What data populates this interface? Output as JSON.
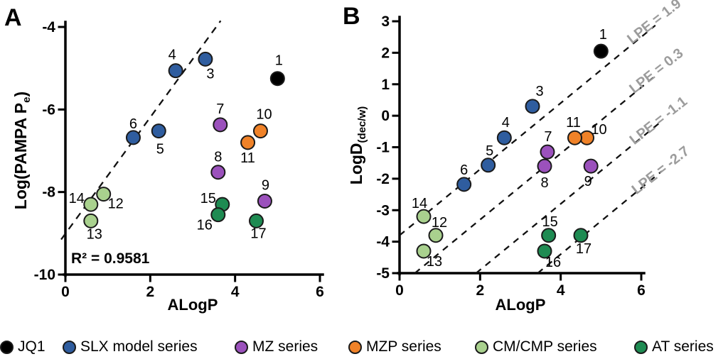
{
  "chart_data": [
    {
      "panel_letter": "A",
      "type": "scatter",
      "xlabel": "ALogP",
      "ylabel_main": "Log(PAMPA P",
      "ylabel_sub": "e",
      "ylabel_suffix": ")",
      "xlim": [
        0,
        6
      ],
      "ylim": [
        -10,
        -4
      ],
      "xticks": [
        0,
        2,
        4,
        6
      ],
      "yticks": [
        -4,
        -6,
        -8,
        -10
      ],
      "annotation": "R² = 0.9581",
      "trendline": {
        "x1": -0.1,
        "y1": -9.15,
        "x2": 3.66,
        "y2": -3.85
      },
      "series": [
        {
          "name": "JQ1",
          "color": "#000000",
          "points": [
            {
              "label": "1",
              "x": 5.0,
              "y": -5.25,
              "dx": 2,
              "dy": -26
            }
          ]
        },
        {
          "name": "SLX model series",
          "color": "#2F5D9F",
          "points": [
            {
              "label": "3",
              "x": 3.3,
              "y": -4.78,
              "dx": 7,
              "dy": 20
            },
            {
              "label": "4",
              "x": 2.6,
              "y": -5.06,
              "dx": -5,
              "dy": -23
            },
            {
              "label": "5",
              "x": 2.2,
              "y": -6.52,
              "dx": 2,
              "dy": 25
            },
            {
              "label": "6",
              "x": 1.6,
              "y": -6.68,
              "dx": 0,
              "dy": -20
            }
          ]
        },
        {
          "name": "MZ series",
          "color": "#9B51BC",
          "points": [
            {
              "label": "7",
              "x": 3.65,
              "y": -6.37,
              "dx": 0,
              "dy": -23
            },
            {
              "label": "8",
              "x": 3.6,
              "y": -7.52,
              "dx": 0,
              "dy": -22
            },
            {
              "label": "9",
              "x": 4.7,
              "y": -8.22,
              "dx": 1,
              "dy": -23
            }
          ]
        },
        {
          "name": "MZP series",
          "color": "#F08228",
          "points": [
            {
              "label": "10",
              "x": 4.6,
              "y": -6.52,
              "dx": 5,
              "dy": -24
            },
            {
              "label": "11",
              "x": 4.3,
              "y": -6.8,
              "dx": 0,
              "dy": 21
            }
          ]
        },
        {
          "name": "CM/CMP series",
          "color": "#A9D18E",
          "points": [
            {
              "label": "12",
              "x": 0.9,
              "y": -8.05,
              "dx": 17,
              "dy": 13
            },
            {
              "label": "13",
              "x": 0.6,
              "y": -8.7,
              "dx": 5,
              "dy": 18
            },
            {
              "label": "14",
              "x": 0.6,
              "y": -8.3,
              "dx": -20,
              "dy": -9
            }
          ]
        },
        {
          "name": "AT series",
          "color": "#1E8B52",
          "points": [
            {
              "label": "15",
              "x": 3.7,
              "y": -8.3,
              "dx": -20,
              "dy": -9
            },
            {
              "label": "16",
              "x": 3.6,
              "y": -8.55,
              "dx": -19,
              "dy": 14
            },
            {
              "label": "17",
              "x": 4.5,
              "y": -8.7,
              "dx": 3,
              "dy": 17
            }
          ]
        }
      ]
    },
    {
      "panel_letter": "B",
      "type": "scatter",
      "xlabel": "ALogP",
      "ylabel_main": "LogD",
      "ylabel_sub": "(dec/w)",
      "ylabel_suffix": "",
      "xlim": [
        0,
        6
      ],
      "ylim": [
        -5,
        3
      ],
      "xticks": [
        0,
        2,
        4,
        6
      ],
      "yticks": [
        3,
        2,
        1,
        0,
        -1,
        -2,
        -3,
        -4,
        -5
      ],
      "lpe_lines": [
        {
          "label": "LPE = 1.9",
          "x1": 0.0,
          "y1": -3.8,
          "x2": 6.35,
          "y2": 2.87
        },
        {
          "label": "LPE = 0.3",
          "x1": 0.38,
          "y1": -5.0,
          "x2": 6.4,
          "y2": 1.32
        },
        {
          "label": "LPE = -1.1",
          "x1": 1.9,
          "y1": -5.0,
          "x2": 6.46,
          "y2": -0.22
        },
        {
          "label": "LPE = -2.7",
          "x1": 3.43,
          "y1": -5.0,
          "x2": 6.51,
          "y2": -1.76
        }
      ],
      "series": [
        {
          "name": "JQ1",
          "color": "#000000",
          "points": [
            {
              "label": "1",
              "x": 5.0,
              "y": 2.05,
              "dx": 3,
              "dy": -24
            }
          ]
        },
        {
          "name": "SLX model series",
          "color": "#2F5D9F",
          "points": [
            {
              "label": "3",
              "x": 3.3,
              "y": 0.3,
              "dx": 10,
              "dy": -22
            },
            {
              "label": "4",
              "x": 2.6,
              "y": -0.7,
              "dx": 2,
              "dy": -22
            },
            {
              "label": "5",
              "x": 2.2,
              "y": -1.57,
              "dx": 2,
              "dy": -21
            },
            {
              "label": "6",
              "x": 1.6,
              "y": -2.18,
              "dx": 0,
              "dy": -21
            }
          ]
        },
        {
          "name": "MZ series",
          "color": "#9B51BC",
          "points": [
            {
              "label": "7",
              "x": 3.67,
              "y": -1.15,
              "dx": 1,
              "dy": -22
            },
            {
              "label": "8",
              "x": 3.6,
              "y": -1.6,
              "dx": 0,
              "dy": 23
            },
            {
              "label": "9",
              "x": 4.75,
              "y": -1.6,
              "dx": -4,
              "dy": 21
            }
          ]
        },
        {
          "name": "MZP series",
          "color": "#F08228",
          "points": [
            {
              "label": "10",
              "x": 4.65,
              "y": -0.7,
              "dx": 17,
              "dy": -12
            },
            {
              "label": "11",
              "x": 4.35,
              "y": -0.7,
              "dx": -2,
              "dy": -22
            }
          ]
        },
        {
          "name": "CM/CMP series",
          "color": "#A9D18E",
          "points": [
            {
              "label": "12",
              "x": 0.9,
              "y": -3.8,
              "dx": 5,
              "dy": -19
            },
            {
              "label": "13",
              "x": 0.6,
              "y": -4.3,
              "dx": 15,
              "dy": 14
            },
            {
              "label": "14",
              "x": 0.6,
              "y": -3.2,
              "dx": -6,
              "dy": -19
            }
          ]
        },
        {
          "name": "AT series",
          "color": "#1E8B52",
          "points": [
            {
              "label": "15",
              "x": 3.7,
              "y": -3.8,
              "dx": 2,
              "dy": -20
            },
            {
              "label": "16",
              "x": 3.6,
              "y": -4.3,
              "dx": 12,
              "dy": 15
            },
            {
              "label": "17",
              "x": 4.5,
              "y": -3.8,
              "dx": 4,
              "dy": 18
            }
          ]
        }
      ]
    }
  ],
  "legend": {
    "items": [
      {
        "label": "JQ1",
        "color": "#000000"
      },
      {
        "label": "SLX model series",
        "color": "#2F5D9F"
      },
      {
        "label": "MZ series",
        "color": "#9B51BC"
      },
      {
        "label": "MZP series",
        "color": "#F08228"
      },
      {
        "label": "CM/CMP series",
        "color": "#A9D18E"
      },
      {
        "label": "AT series",
        "color": "#1E8B52"
      }
    ]
  }
}
